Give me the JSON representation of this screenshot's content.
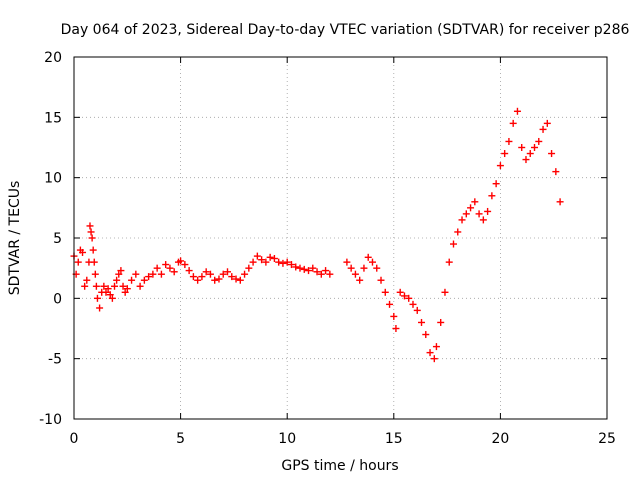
{
  "chart_data": {
    "type": "scatter",
    "title": "Day 064 of 2023, Sidereal Day-to-day VTEC variation (SDTVAR) for receiver p286",
    "xlabel": "GPS time / hours",
    "ylabel": "SDTVAR / TECUs",
    "xlim": [
      0,
      25
    ],
    "ylim": [
      -10,
      20
    ],
    "x_ticks": [
      "0",
      "5",
      "10",
      "15",
      "20",
      "25"
    ],
    "y_ticks": [
      "-10",
      "-5",
      "0",
      "5",
      "10",
      "15",
      "20"
    ],
    "grid": true,
    "marker": "plus",
    "series_color": "#ff0000",
    "series": [
      {
        "x": [
          0.0,
          0.1,
          0.2,
          0.3,
          0.4,
          0.5,
          0.6,
          0.7,
          0.75,
          0.8,
          0.85,
          0.9,
          0.95,
          1.0,
          1.05,
          1.1,
          1.2,
          1.3,
          1.4,
          1.5,
          1.6,
          1.7,
          1.8,
          1.9,
          2.0,
          2.1,
          2.2,
          2.3,
          2.4,
          2.5,
          2.7,
          2.9,
          3.1,
          3.3,
          3.5,
          3.7,
          3.9,
          4.1,
          4.3,
          4.5,
          4.7,
          4.9,
          5.0,
          5.2,
          5.4,
          5.6,
          5.8,
          6.0,
          6.2,
          6.4,
          6.6,
          6.8,
          7.0,
          7.2,
          7.4,
          7.6,
          7.8,
          8.0,
          8.2,
          8.4,
          8.6,
          8.8,
          9.0,
          9.2,
          9.4,
          9.6,
          9.8,
          10.0,
          10.2,
          10.4,
          10.6,
          10.8,
          11.0,
          11.2,
          11.4,
          11.6,
          11.8,
          12.0,
          12.8,
          13.0,
          13.2,
          13.4,
          13.6,
          13.8,
          14.0,
          14.2,
          14.4,
          14.6,
          14.8,
          15.0,
          15.1,
          15.3,
          15.5,
          15.7,
          15.9,
          16.1,
          16.3,
          16.5,
          16.7,
          16.9,
          17.0,
          17.2,
          17.4,
          17.6,
          17.8,
          18.0,
          18.2,
          18.4,
          18.6,
          18.8,
          19.0,
          19.2,
          19.4,
          19.6,
          19.8,
          20.0,
          20.2,
          20.4,
          20.6,
          20.8,
          21.0,
          21.2,
          21.4,
          21.6,
          21.8,
          22.0,
          22.2,
          22.4,
          22.6,
          22.8
        ],
        "y": [
          3.5,
          2.0,
          3.0,
          4.0,
          3.8,
          1.0,
          1.5,
          3.0,
          6.0,
          5.5,
          5.0,
          4.0,
          3.0,
          2.0,
          1.0,
          0.0,
          -0.8,
          0.5,
          1.0,
          0.5,
          0.8,
          0.3,
          0.0,
          1.0,
          1.5,
          2.0,
          2.3,
          1.0,
          0.5,
          0.8,
          1.5,
          2.0,
          1.0,
          1.5,
          1.8,
          2.0,
          2.5,
          2.0,
          2.8,
          2.5,
          2.2,
          3.0,
          3.1,
          2.8,
          2.3,
          1.8,
          1.5,
          1.8,
          2.2,
          2.0,
          1.5,
          1.6,
          2.0,
          2.2,
          1.8,
          1.6,
          1.5,
          2.0,
          2.5,
          3.0,
          3.5,
          3.2,
          3.0,
          3.4,
          3.3,
          3.0,
          2.9,
          3.0,
          2.8,
          2.6,
          2.5,
          2.4,
          2.3,
          2.5,
          2.2,
          2.0,
          2.3,
          2.0,
          3.0,
          2.5,
          2.0,
          1.5,
          2.5,
          3.4,
          3.0,
          2.5,
          1.5,
          0.5,
          -0.5,
          -1.5,
          -2.5,
          0.5,
          0.2,
          0.0,
          -0.5,
          -1.0,
          -2.0,
          -3.0,
          -4.5,
          -5.0,
          -4.0,
          -2.0,
          0.5,
          3.0,
          4.5,
          5.5,
          6.5,
          7.0,
          7.5,
          8.0,
          7.0,
          6.5,
          7.2,
          8.5,
          9.5,
          11.0,
          12.0,
          13.0,
          14.5,
          15.5,
          12.5,
          11.5,
          12.0,
          12.5,
          13.0,
          14.0,
          14.5,
          12.0,
          10.5,
          8.0
        ]
      }
    ]
  }
}
